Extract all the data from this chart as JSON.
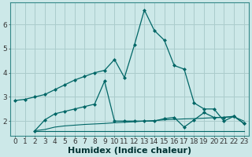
{
  "background_color": "#cce8e8",
  "grid_color": "#aacccc",
  "line_color": "#006666",
  "marker_color": "#006666",
  "xlabel": "Humidex (Indice chaleur)",
  "xlabel_fontsize": 8,
  "tick_fontsize": 6.5,
  "x_ticks": [
    0,
    1,
    2,
    3,
    4,
    5,
    6,
    7,
    8,
    9,
    10,
    11,
    12,
    13,
    14,
    15,
    16,
    17,
    18,
    19,
    20,
    21,
    22,
    23
  ],
  "ylim": [
    1.4,
    6.9
  ],
  "xlim": [
    -0.5,
    23.5
  ],
  "yticks": [
    2,
    3,
    4,
    5,
    6
  ],
  "line1_x": [
    0,
    1,
    2,
    3,
    4,
    5,
    6,
    7,
    8,
    9,
    10,
    11,
    12,
    13,
    14,
    15,
    16,
    17,
    18,
    19,
    20,
    21,
    22,
    23
  ],
  "line1_y": [
    2.85,
    2.9,
    3.0,
    3.1,
    3.3,
    3.5,
    3.7,
    3.85,
    4.0,
    4.1,
    4.55,
    3.8,
    5.15,
    6.6,
    5.75,
    5.35,
    4.3,
    4.15,
    2.75,
    2.5,
    2.5,
    2.0,
    2.2,
    1.9
  ],
  "line2_x": [
    2,
    3,
    4,
    5,
    6,
    7,
    8,
    9,
    10,
    11,
    12,
    13,
    14,
    15,
    16,
    17,
    18,
    19,
    20,
    21,
    22,
    23
  ],
  "line2_y": [
    1.6,
    2.05,
    2.3,
    2.4,
    2.5,
    2.6,
    2.7,
    3.65,
    2.0,
    2.0,
    2.0,
    2.0,
    2.0,
    2.1,
    2.15,
    1.75,
    2.05,
    2.35,
    2.15,
    2.15,
    2.2,
    1.9
  ],
  "line3_x": [
    2,
    3,
    4,
    5,
    6,
    7,
    8,
    9,
    10,
    11,
    12,
    13,
    14,
    15,
    16,
    17,
    18,
    19,
    20,
    21,
    22,
    23
  ],
  "line3_y": [
    1.6,
    1.65,
    1.75,
    1.8,
    1.83,
    1.86,
    1.88,
    1.9,
    1.93,
    1.95,
    1.97,
    2.0,
    2.02,
    2.05,
    2.07,
    2.09,
    2.1,
    2.12,
    2.14,
    2.16,
    2.18,
    2.0
  ],
  "line4_x": [
    2,
    3,
    4,
    5,
    6,
    7,
    8,
    9,
    10,
    11,
    12,
    13,
    14,
    15,
    16,
    17,
    18,
    19,
    20,
    21,
    22,
    23
  ],
  "line4_y": [
    1.57,
    1.57,
    1.57,
    1.57,
    1.57,
    1.57,
    1.57,
    1.57,
    1.57,
    1.57,
    1.57,
    1.57,
    1.57,
    1.57,
    1.57,
    1.57,
    1.57,
    1.57,
    1.57,
    1.57,
    1.57,
    1.57
  ]
}
